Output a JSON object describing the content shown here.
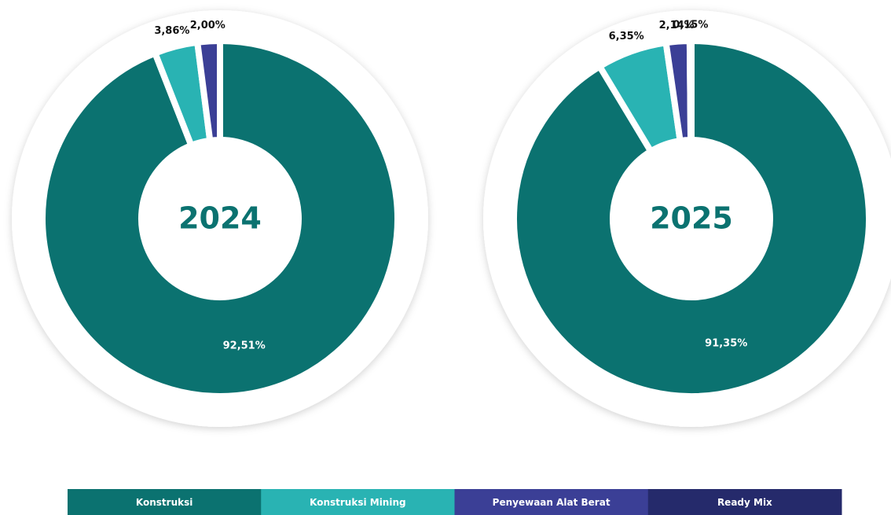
{
  "chart_data": [
    {
      "type": "donut",
      "title": "2024",
      "categories": [
        "Konstruksi",
        "Konstruksi Mining",
        "Penyewaan Alat Berat"
      ],
      "values": [
        92.51,
        3.86,
        2.0
      ],
      "value_labels": [
        "92,51%",
        "3,86%",
        "2,00%"
      ],
      "colors": [
        "#0b7270",
        "#29b3b3",
        "#3b3f96"
      ]
    },
    {
      "type": "donut",
      "title": "2025",
      "categories": [
        "Konstruksi",
        "Konstruksi Mining",
        "Penyewaan Alat Berat",
        "Ready Mix"
      ],
      "values": [
        91.35,
        6.35,
        2.14,
        0.15
      ],
      "value_labels": [
        "91,35%",
        "6,35%",
        "2,14%",
        "0,15%"
      ],
      "colors": [
        "#0b7270",
        "#29b3b3",
        "#3b3f96",
        "#252a6b"
      ]
    }
  ]
}
